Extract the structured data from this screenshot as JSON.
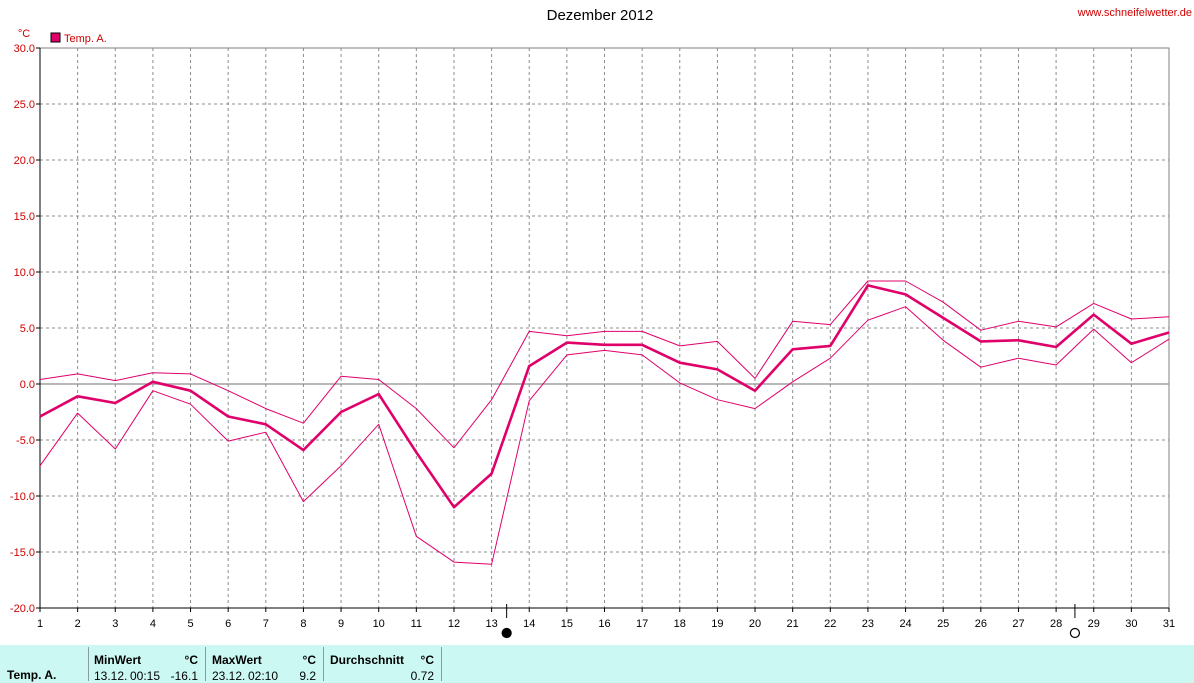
{
  "site": "www.schneifelwetter.de",
  "colors": {
    "series": "#e0006a",
    "grid": "#8c8c8c",
    "axis": "#000000",
    "panel": "#ccf8f4",
    "site": "#d00000"
  },
  "chart_data": {
    "type": "line",
    "title": "Dezember 2012",
    "ylabel": "°C",
    "ylim": [
      -20,
      30
    ],
    "ytick_labels": [
      "30.0",
      "25.0",
      "20.0",
      "15.0",
      "10.0",
      "5.0",
      "0.0",
      "-5.0",
      "-10.0",
      "-15.0",
      "-20.0"
    ],
    "yticks": [
      30,
      25,
      20,
      15,
      10,
      5,
      0,
      -5,
      -10,
      -15,
      -20
    ],
    "x": [
      1,
      2,
      3,
      4,
      5,
      6,
      7,
      8,
      9,
      10,
      11,
      12,
      13,
      14,
      15,
      16,
      17,
      18,
      19,
      20,
      21,
      22,
      23,
      24,
      25,
      26,
      27,
      28,
      29,
      30,
      31
    ],
    "x_tick_labels": [
      "1",
      "2",
      "3",
      "4",
      "5",
      "6",
      "7",
      "8",
      "9",
      "10",
      "11",
      "12",
      "13",
      "14",
      "15",
      "16",
      "17",
      "18",
      "19",
      "20",
      "21",
      "22",
      "23",
      "24",
      "25",
      "26",
      "27",
      "28",
      "29",
      "30",
      "31"
    ],
    "grid": true,
    "legend": {
      "placement": "top-left",
      "label": "Temp. A."
    },
    "moon_phases": [
      {
        "day": 13.4,
        "phase": "new-moon",
        "symbol": "●"
      },
      {
        "day": 28.5,
        "phase": "full-moon",
        "symbol": "○"
      }
    ],
    "series": [
      {
        "name": "Temp. A.",
        "role": "mean",
        "values": [
          -2.9,
          -1.1,
          -1.7,
          0.2,
          -0.6,
          -2.9,
          -3.6,
          -5.9,
          -2.5,
          -0.9,
          -6.1,
          -11.0,
          -8.0,
          1.6,
          3.7,
          3.5,
          3.5,
          1.9,
          1.3,
          -0.6,
          3.1,
          3.4,
          8.8,
          8.0,
          5.9,
          3.8,
          3.9,
          3.3,
          6.2,
          3.6,
          4.6
        ]
      },
      {
        "role": "max",
        "values": [
          0.4,
          0.9,
          0.3,
          1.0,
          0.9,
          -0.6,
          -2.2,
          -3.5,
          0.7,
          0.4,
          -2.2,
          -5.7,
          -1.4,
          4.7,
          4.3,
          4.7,
          4.7,
          3.4,
          3.8,
          0.5,
          5.6,
          5.3,
          9.2,
          9.2,
          7.3,
          4.8,
          5.6,
          5.1,
          7.2,
          5.8,
          6.0
        ]
      },
      {
        "role": "min",
        "values": [
          -7.3,
          -2.6,
          -5.8,
          -0.6,
          -1.8,
          -5.1,
          -4.3,
          -10.5,
          -7.3,
          -3.6,
          -13.6,
          -15.9,
          -16.1,
          -1.5,
          2.6,
          3.0,
          2.6,
          0.1,
          -1.4,
          -2.2,
          0.2,
          2.3,
          5.7,
          6.9,
          3.9,
          1.5,
          2.3,
          1.7,
          4.9,
          1.9,
          4.0
        ]
      }
    ]
  },
  "stats": {
    "row_label": "Temp. A.",
    "min": {
      "label": "MinWert",
      "unit": "°C",
      "date": "13.12.",
      "time": "00:15",
      "value": "-16.1"
    },
    "max": {
      "label": "MaxWert",
      "unit": "°C",
      "date": "23.12.",
      "time": "02:10",
      "value": "9.2"
    },
    "avg": {
      "label": "Durchschnitt",
      "unit": "°C",
      "value": "0.72"
    }
  }
}
